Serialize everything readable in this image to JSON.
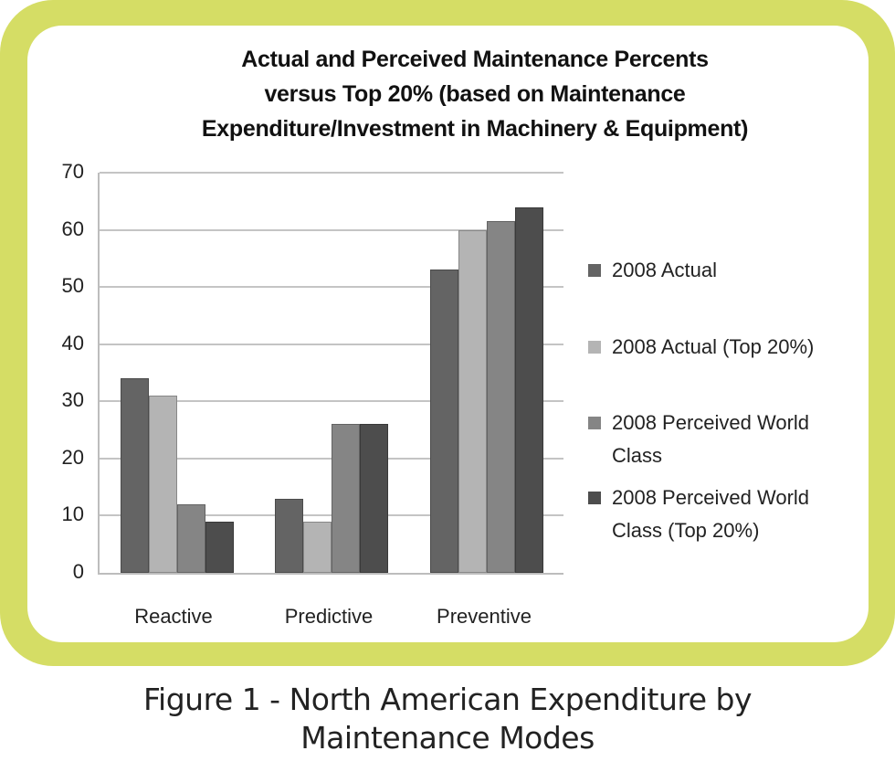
{
  "chart_data": {
    "type": "bar",
    "title": "Actual and Perceived Maintenance Percents\nversus Top 20% (based on Maintenance\nExpenditure/Investment in Machinery & Equipment)",
    "categories": [
      "Reactive",
      "Predictive",
      "Preventive"
    ],
    "series": [
      {
        "name": "2008 Actual",
        "color": "#646464",
        "values": [
          34,
          13,
          53
        ]
      },
      {
        "name": "2008 Actual (Top 20%)",
        "color": "#b4b4b4",
        "values": [
          31,
          9,
          60
        ]
      },
      {
        "name": "2008 Perceived World Class",
        "color": "#858585",
        "values": [
          12,
          26,
          61.5
        ]
      },
      {
        "name": "2008 Perceived World Class (Top 20%)",
        "color": "#4d4d4d",
        "values": [
          9,
          26,
          64
        ]
      }
    ],
    "xlabel": "",
    "ylabel": "",
    "ylim": [
      0,
      70
    ],
    "yticks": [
      0,
      10,
      20,
      30,
      40,
      50,
      60,
      70
    ],
    "grid": true,
    "legend_position": "right"
  },
  "legend": {
    "items": [
      {
        "label": "2008 Actual"
      },
      {
        "label": "2008 Actual (Top 20%)"
      },
      {
        "label": "2008 Perceived World\nClass"
      },
      {
        "label": "2008 Perceived World\nClass (Top 20%)"
      }
    ]
  },
  "caption": "Figure 1 - North American Expenditure by\nMaintenance Modes",
  "frame": {
    "border_color": "#d5dd65"
  }
}
